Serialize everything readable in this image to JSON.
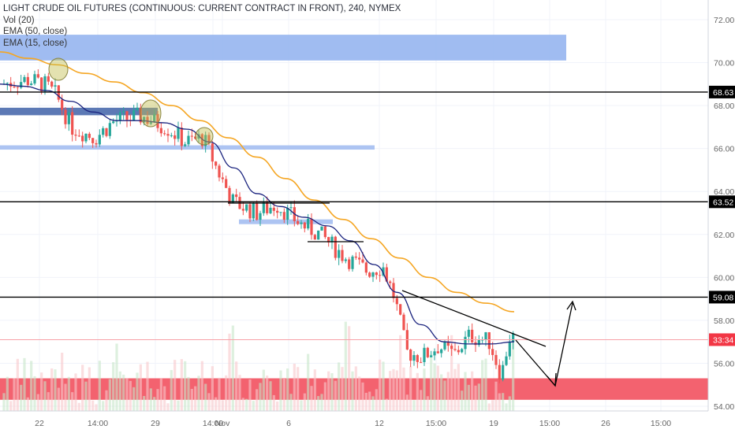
{
  "chart_data": {
    "type": "candlestick",
    "title": "LIGHT CRUDE OIL FUTURES (CONTINUOUS: CURRENT CONTRACT IN FRONT), 240, NYMEX",
    "indicators": [
      "Vol (20)",
      "EMA (50, close)",
      "EMA (15, close)"
    ],
    "y_ticks": [
      "54.00",
      "56.00",
      "58.00",
      "60.00",
      "62.00",
      "64.00",
      "66.00",
      "68.00",
      "70.00",
      "72.00"
    ],
    "ylim": [
      53.8,
      73.0
    ],
    "x_ticks": [
      "22",
      "14:00",
      "29",
      "14:00",
      "Nov",
      "6",
      "12",
      "15:00",
      "19",
      "15:00",
      "26",
      "15:00"
    ],
    "price_labels": [
      {
        "text": "68.63",
        "value": 68.63,
        "color": "#000000"
      },
      {
        "text": "63.52",
        "value": 63.52,
        "color": "#000000"
      },
      {
        "text": "59.08",
        "value": 59.08,
        "color": "#000000"
      },
      {
        "text": "33:34",
        "value": 57.1,
        "color": "#f23645"
      }
    ],
    "horizontal_lines": [
      68.63,
      63.52,
      59.08
    ],
    "current_price_line": 57.1,
    "zones": [
      {
        "y1": 70.1,
        "y2": 71.3,
        "color": "#8fb0ee"
      },
      {
        "y1": 67.55,
        "y2": 67.9,
        "color": "#4a6aad"
      },
      {
        "y1": 65.95,
        "y2": 66.15,
        "color": "#9fbaf0"
      },
      {
        "y1": 62.48,
        "y2": 62.7,
        "color": "#9fbaf0"
      },
      {
        "y1": 54.3,
        "y2": 55.3,
        "color": "#f25a67"
      }
    ],
    "ema50": [
      70.5,
      70.2,
      69.9,
      69.5,
      69.1,
      68.6,
      68.0,
      67.3,
      66.5,
      65.6,
      64.6,
      63.6,
      62.7,
      61.8,
      60.9,
      60.0,
      59.3,
      58.8,
      58.4
    ],
    "ema15": [
      69.0,
      68.9,
      68.7,
      68.2,
      67.7,
      67.3,
      67.3,
      67.2,
      66.9,
      66.3,
      65.1,
      63.9,
      63.3,
      62.8,
      62.4,
      61.7,
      60.6,
      59.3,
      57.8,
      57.0,
      56.9,
      56.9,
      57.0
    ],
    "candle_summary": {
      "start": 69.0,
      "end": 57.2,
      "count": 150,
      "bull_color": "#26a69a",
      "bear_color": "#ef5350"
    }
  }
}
